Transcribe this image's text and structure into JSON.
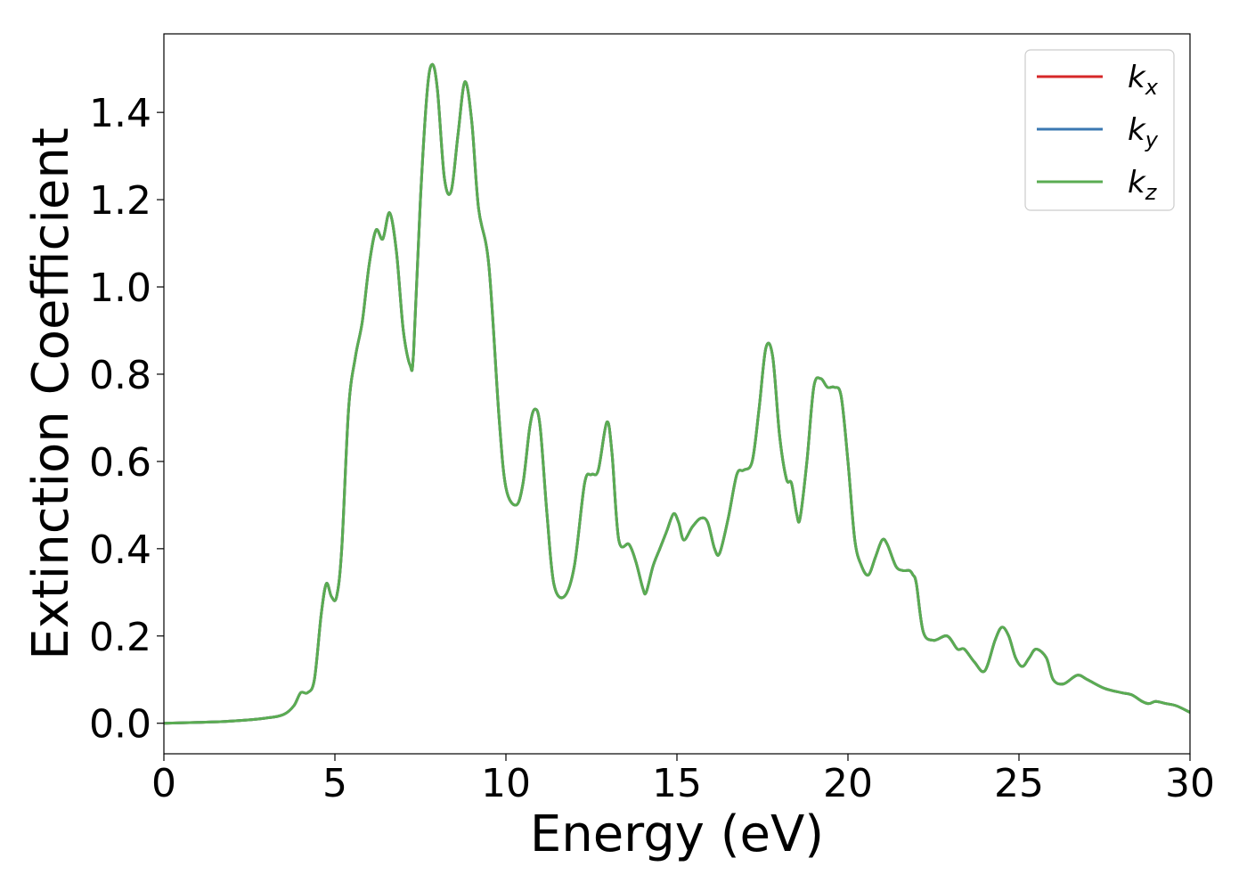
{
  "chart_data": {
    "type": "line",
    "title": "",
    "xlabel": "Energy (eV)",
    "ylabel": "Extinction Coefficient",
    "xlim": [
      0,
      30
    ],
    "ylim": [
      -0.07,
      1.58
    ],
    "xticks": [
      0,
      5,
      10,
      15,
      20,
      25,
      30
    ],
    "xtick_labels": [
      "0",
      "5",
      "10",
      "15",
      "20",
      "25",
      "30"
    ],
    "yticks": [
      0.0,
      0.2,
      0.4,
      0.6,
      0.8,
      1.0,
      1.2,
      1.4
    ],
    "ytick_labels": [
      "0.0",
      "0.2",
      "0.4",
      "0.6",
      "0.8",
      "1.0",
      "1.2",
      "1.4"
    ],
    "grid": false,
    "legend_position": "top-right",
    "x": [
      0,
      1,
      2,
      3,
      3.5,
      3.8,
      4.0,
      4.2,
      4.4,
      4.6,
      4.75,
      4.9,
      5.05,
      5.2,
      5.4,
      5.6,
      5.8,
      6.0,
      6.2,
      6.4,
      6.6,
      6.8,
      7.0,
      7.2,
      7.3,
      7.5,
      7.7,
      7.85,
      8.0,
      8.2,
      8.4,
      8.6,
      8.8,
      9.0,
      9.2,
      9.5,
      9.8,
      10.0,
      10.3,
      10.5,
      10.7,
      10.85,
      11.0,
      11.2,
      11.4,
      11.7,
      12.0,
      12.3,
      12.5,
      12.7,
      12.95,
      13.1,
      13.3,
      13.6,
      13.8,
      14.0,
      14.1,
      14.3,
      14.5,
      14.7,
      14.9,
      15.05,
      15.2,
      15.45,
      15.7,
      15.9,
      16.1,
      16.25,
      16.5,
      16.75,
      16.95,
      17.2,
      17.4,
      17.6,
      17.8,
      18.0,
      18.2,
      18.35,
      18.5,
      18.6,
      18.8,
      19.0,
      19.2,
      19.4,
      19.6,
      19.8,
      20.0,
      20.2,
      20.4,
      20.6,
      20.8,
      21.0,
      21.15,
      21.4,
      21.6,
      21.8,
      21.9,
      22.0,
      22.2,
      22.5,
      22.9,
      23.2,
      23.4,
      23.7,
      24.0,
      24.3,
      24.5,
      24.7,
      24.9,
      25.1,
      25.3,
      25.5,
      25.8,
      26.0,
      26.3,
      26.7,
      27.0,
      27.5,
      28.0,
      28.3,
      28.6,
      28.8,
      29.0,
      29.3,
      29.6,
      30.0
    ],
    "series": [
      {
        "name": "k_x",
        "color": "#d62728",
        "y": [
          0.0,
          0.002,
          0.005,
          0.012,
          0.02,
          0.04,
          0.07,
          0.07,
          0.1,
          0.25,
          0.32,
          0.29,
          0.29,
          0.4,
          0.72,
          0.84,
          0.92,
          1.05,
          1.13,
          1.11,
          1.17,
          1.08,
          0.9,
          0.82,
          0.85,
          1.2,
          1.45,
          1.51,
          1.45,
          1.25,
          1.22,
          1.35,
          1.47,
          1.38,
          1.18,
          1.05,
          0.7,
          0.54,
          0.5,
          0.55,
          0.68,
          0.72,
          0.68,
          0.48,
          0.32,
          0.29,
          0.36,
          0.55,
          0.57,
          0.58,
          0.69,
          0.62,
          0.42,
          0.41,
          0.37,
          0.31,
          0.3,
          0.36,
          0.4,
          0.44,
          0.48,
          0.46,
          0.42,
          0.45,
          0.47,
          0.46,
          0.4,
          0.39,
          0.47,
          0.57,
          0.58,
          0.6,
          0.72,
          0.86,
          0.84,
          0.66,
          0.56,
          0.55,
          0.48,
          0.47,
          0.6,
          0.77,
          0.79,
          0.77,
          0.77,
          0.75,
          0.6,
          0.42,
          0.36,
          0.34,
          0.38,
          0.42,
          0.41,
          0.36,
          0.35,
          0.35,
          0.34,
          0.32,
          0.21,
          0.19,
          0.2,
          0.17,
          0.17,
          0.14,
          0.12,
          0.19,
          0.22,
          0.2,
          0.15,
          0.13,
          0.15,
          0.17,
          0.15,
          0.1,
          0.09,
          0.11,
          0.1,
          0.08,
          0.07,
          0.065,
          0.05,
          0.045,
          0.05,
          0.045,
          0.04,
          0.025
        ]
      },
      {
        "name": "k_y",
        "color": "#3a78b2",
        "y": [
          0.0,
          0.002,
          0.005,
          0.012,
          0.02,
          0.04,
          0.07,
          0.07,
          0.1,
          0.25,
          0.32,
          0.29,
          0.29,
          0.4,
          0.72,
          0.84,
          0.92,
          1.05,
          1.13,
          1.11,
          1.17,
          1.08,
          0.9,
          0.82,
          0.85,
          1.2,
          1.45,
          1.51,
          1.45,
          1.25,
          1.22,
          1.35,
          1.47,
          1.38,
          1.18,
          1.05,
          0.7,
          0.54,
          0.5,
          0.55,
          0.68,
          0.72,
          0.68,
          0.48,
          0.32,
          0.29,
          0.36,
          0.55,
          0.57,
          0.58,
          0.69,
          0.62,
          0.42,
          0.41,
          0.37,
          0.31,
          0.3,
          0.36,
          0.4,
          0.44,
          0.48,
          0.46,
          0.42,
          0.45,
          0.47,
          0.46,
          0.4,
          0.39,
          0.47,
          0.57,
          0.58,
          0.6,
          0.72,
          0.86,
          0.84,
          0.66,
          0.56,
          0.55,
          0.48,
          0.47,
          0.6,
          0.77,
          0.79,
          0.77,
          0.77,
          0.75,
          0.6,
          0.42,
          0.36,
          0.34,
          0.38,
          0.42,
          0.41,
          0.36,
          0.35,
          0.35,
          0.34,
          0.32,
          0.21,
          0.19,
          0.2,
          0.17,
          0.17,
          0.14,
          0.12,
          0.19,
          0.22,
          0.2,
          0.15,
          0.13,
          0.15,
          0.17,
          0.15,
          0.1,
          0.09,
          0.11,
          0.1,
          0.08,
          0.07,
          0.065,
          0.05,
          0.045,
          0.05,
          0.045,
          0.04,
          0.025
        ]
      },
      {
        "name": "k_z",
        "color": "#5aac52",
        "y": [
          0.0,
          0.002,
          0.005,
          0.012,
          0.02,
          0.04,
          0.07,
          0.07,
          0.1,
          0.25,
          0.32,
          0.29,
          0.29,
          0.4,
          0.72,
          0.84,
          0.92,
          1.05,
          1.13,
          1.11,
          1.17,
          1.08,
          0.9,
          0.82,
          0.85,
          1.2,
          1.45,
          1.51,
          1.45,
          1.25,
          1.22,
          1.35,
          1.47,
          1.38,
          1.18,
          1.05,
          0.7,
          0.54,
          0.5,
          0.55,
          0.68,
          0.72,
          0.68,
          0.48,
          0.32,
          0.29,
          0.36,
          0.55,
          0.57,
          0.58,
          0.69,
          0.62,
          0.42,
          0.41,
          0.37,
          0.31,
          0.3,
          0.36,
          0.4,
          0.44,
          0.48,
          0.46,
          0.42,
          0.45,
          0.47,
          0.46,
          0.4,
          0.39,
          0.47,
          0.57,
          0.58,
          0.6,
          0.72,
          0.86,
          0.84,
          0.66,
          0.56,
          0.55,
          0.48,
          0.47,
          0.6,
          0.77,
          0.79,
          0.77,
          0.77,
          0.75,
          0.6,
          0.42,
          0.36,
          0.34,
          0.38,
          0.42,
          0.41,
          0.36,
          0.35,
          0.35,
          0.34,
          0.32,
          0.21,
          0.19,
          0.2,
          0.17,
          0.17,
          0.14,
          0.12,
          0.19,
          0.22,
          0.2,
          0.15,
          0.13,
          0.15,
          0.17,
          0.15,
          0.1,
          0.09,
          0.11,
          0.1,
          0.08,
          0.07,
          0.065,
          0.05,
          0.045,
          0.05,
          0.045,
          0.04,
          0.025
        ]
      }
    ]
  }
}
